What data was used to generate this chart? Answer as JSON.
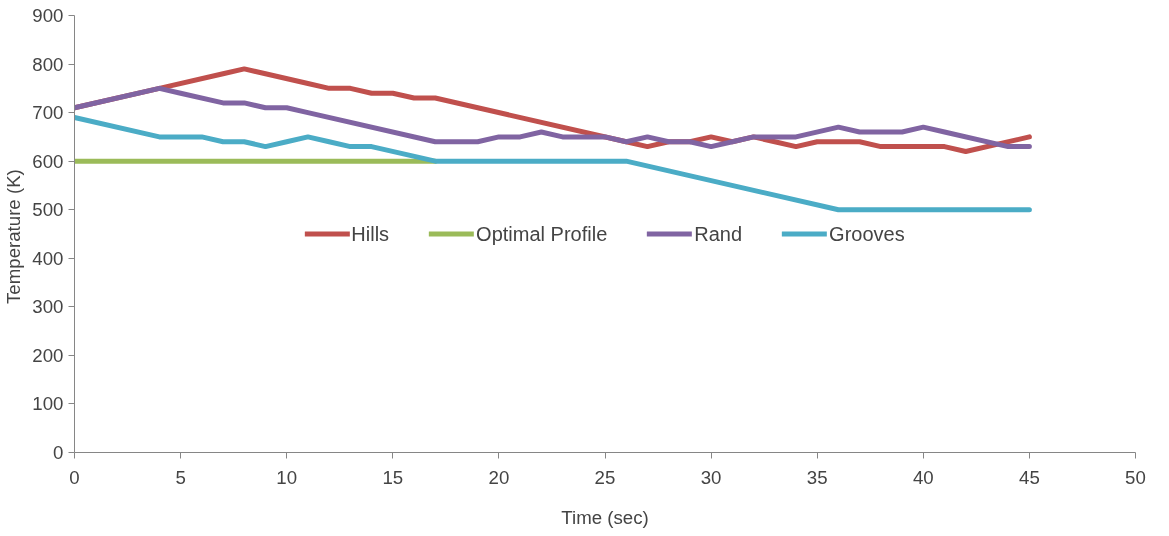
{
  "chart_data": {
    "type": "line",
    "xlabel": "Time (sec)",
    "ylabel": "Temperature  (K)",
    "xlim": [
      0,
      50
    ],
    "xticks": [
      0,
      5,
      10,
      15,
      20,
      25,
      30,
      35,
      40,
      45,
      50
    ],
    "ylim": [
      0,
      900
    ],
    "yticks": [
      0,
      100,
      200,
      300,
      400,
      500,
      600,
      700,
      800,
      900
    ],
    "grid": false,
    "legend": "center",
    "marker": "none",
    "line_style": "solid",
    "series": [
      {
        "name": "Hills",
        "color": "#c0504d",
        "x": [
          0,
          4,
          7,
          8,
          9,
          11,
          12,
          13,
          14,
          15,
          16,
          17,
          26,
          27,
          28,
          29,
          30,
          31,
          32,
          33,
          34,
          35,
          36,
          37,
          38,
          40,
          41,
          42,
          45
        ],
        "values": [
          710,
          750,
          780,
          790,
          780,
          760,
          750,
          750,
          740,
          740,
          730,
          730,
          640,
          630,
          640,
          640,
          650,
          640,
          650,
          640,
          630,
          640,
          640,
          640,
          630,
          630,
          630,
          620,
          650
        ]
      },
      {
        "name": "Optimal Profile",
        "color": "#9bbb59",
        "x": [
          0,
          17
        ],
        "values": [
          600,
          600
        ]
      },
      {
        "name": "Rand",
        "color": "#8064a2",
        "x": [
          0,
          4,
          5,
          7,
          8,
          9,
          10,
          11,
          17,
          19,
          20,
          21,
          22,
          23,
          24,
          25,
          26,
          27,
          28,
          29,
          30,
          31,
          32,
          33,
          34,
          36,
          37,
          39,
          40,
          41,
          44,
          45
        ],
        "values": [
          710,
          750,
          740,
          720,
          720,
          710,
          710,
          700,
          640,
          640,
          650,
          650,
          660,
          650,
          650,
          650,
          640,
          650,
          640,
          640,
          630,
          640,
          650,
          650,
          650,
          670,
          660,
          660,
          670,
          660,
          630,
          630
        ]
      },
      {
        "name": "Grooves",
        "color": "#4bacc6",
        "x": [
          0,
          4,
          5,
          6,
          7,
          8,
          9,
          10,
          11,
          12,
          13,
          14,
          17,
          25,
          26,
          36,
          45
        ],
        "values": [
          690,
          650,
          650,
          650,
          640,
          640,
          630,
          640,
          650,
          640,
          630,
          630,
          600,
          600,
          600,
          500,
          500
        ]
      }
    ]
  }
}
